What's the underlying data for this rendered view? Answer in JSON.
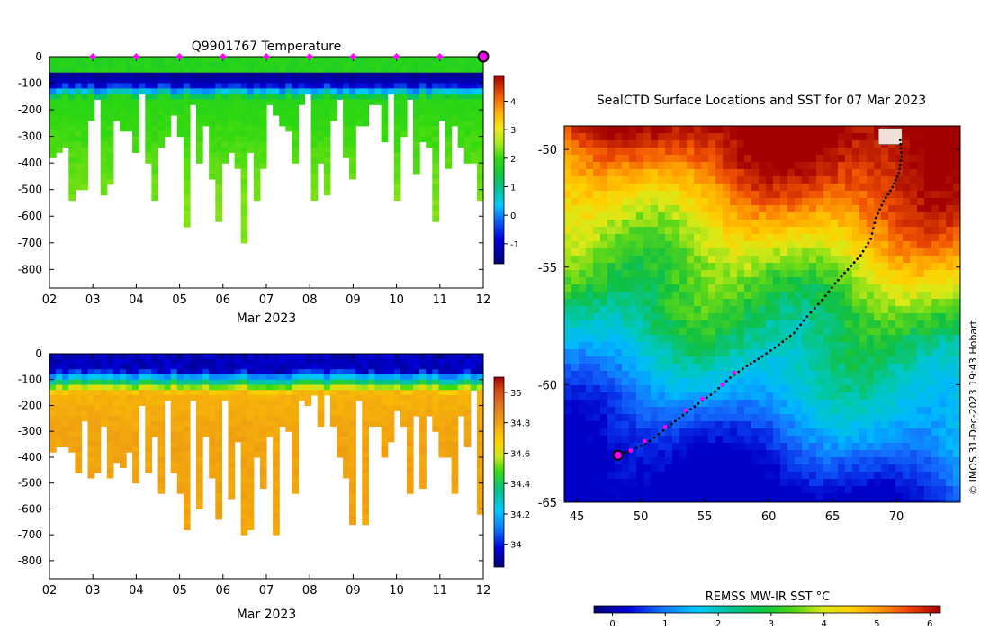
{
  "chart_data": [
    {
      "id": "temperature",
      "type": "heatmap",
      "title": "Q9901767  Temperature",
      "xlabel": "Mar 2023",
      "x_tick_labels": [
        "02",
        "03",
        "04",
        "05",
        "06",
        "07",
        "08",
        "09",
        "10",
        "11",
        "12"
      ],
      "x_ticks": [
        2,
        3,
        4,
        5,
        6,
        7,
        8,
        9,
        10,
        11,
        12
      ],
      "xlim": [
        2,
        12
      ],
      "ylim": [
        -870,
        0
      ],
      "y_ticks": [
        0,
        -100,
        -200,
        -300,
        -400,
        -500,
        -600,
        -700,
        -800
      ],
      "y_tick_labels": [
        "0",
        "-100",
        "-200",
        "-300",
        "-400",
        "-500",
        "-600",
        "-700",
        "-800"
      ],
      "colorbar": {
        "range": [
          -1.7,
          4.9
        ],
        "ticks": [
          -1,
          0,
          1,
          2,
          3,
          4
        ],
        "tick_labels": [
          "-1",
          "0",
          "1",
          "2",
          "3",
          "4"
        ]
      },
      "surface_markers_day": [
        3,
        4,
        5,
        6,
        7,
        8,
        9,
        10,
        11
      ],
      "current_position_day": 12
    },
    {
      "id": "salinity",
      "type": "heatmap",
      "title": "",
      "xlabel": "Mar 2023",
      "x_tick_labels": [
        "02",
        "03",
        "04",
        "05",
        "06",
        "07",
        "08",
        "09",
        "10",
        "11",
        "12"
      ],
      "x_ticks": [
        2,
        3,
        4,
        5,
        6,
        7,
        8,
        9,
        10,
        11,
        12
      ],
      "xlim": [
        2,
        12
      ],
      "ylim": [
        -870,
        0
      ],
      "y_ticks": [
        0,
        -100,
        -200,
        -300,
        -400,
        -500,
        -600,
        -700,
        -800
      ],
      "y_tick_labels": [
        "0",
        "-100",
        "-200",
        "-300",
        "-400",
        "-500",
        "-600",
        "-700",
        "-800"
      ],
      "colorbar": {
        "range": [
          33.85,
          35.1
        ],
        "ticks": [
          34,
          34.2,
          34.4,
          34.6,
          34.8,
          35
        ],
        "tick_labels": [
          "34",
          "34.2",
          "34.4",
          "34.6",
          "34.8",
          "35"
        ]
      }
    },
    {
      "id": "sst_map",
      "type": "heatmap",
      "title": "SealCTD Surface Locations and SST for 07 Mar 2023",
      "xlim": [
        44,
        75
      ],
      "ylim": [
        -65,
        -49
      ],
      "x_ticks": [
        45,
        50,
        55,
        60,
        65,
        70
      ],
      "x_tick_labels": [
        "45",
        "50",
        "55",
        "60",
        "65",
        "70"
      ],
      "y_ticks": [
        -50,
        -55,
        -60,
        -65
      ],
      "y_tick_labels": [
        "-50",
        "-55",
        "-60",
        "-65"
      ],
      "colorbar": {
        "label": "REMSS MW-IR SST °C",
        "range": [
          -0.35,
          6.2
        ],
        "ticks": [
          0,
          1,
          2,
          3,
          4,
          5,
          6
        ],
        "tick_labels": [
          "0",
          "1",
          "2",
          "3",
          "4",
          "5",
          "6"
        ]
      },
      "track": [
        [
          70.3,
          -49.6
        ],
        [
          70.4,
          -50.3
        ],
        [
          70.2,
          -51.0
        ],
        [
          69.7,
          -51.6
        ],
        [
          69.0,
          -52.2
        ],
        [
          68.4,
          -52.9
        ],
        [
          68.0,
          -53.8
        ],
        [
          67.2,
          -54.5
        ],
        [
          66.2,
          -55.1
        ],
        [
          65.2,
          -55.7
        ],
        [
          64.2,
          -56.4
        ],
        [
          63.0,
          -57.1
        ],
        [
          62.0,
          -57.8
        ],
        [
          60.8,
          -58.3
        ],
        [
          59.5,
          -58.8
        ],
        [
          58.3,
          -59.2
        ],
        [
          57.0,
          -59.7
        ],
        [
          55.8,
          -60.3
        ],
        [
          54.5,
          -60.8
        ],
        [
          53.3,
          -61.3
        ],
        [
          52.1,
          -61.8
        ],
        [
          50.7,
          -62.4
        ],
        [
          49.3,
          -62.8
        ],
        [
          48.2,
          -63.0
        ]
      ],
      "track_daily_points": [
        [
          57.3,
          -59.5
        ],
        [
          56.4,
          -60.0
        ],
        [
          54.8,
          -60.6
        ],
        [
          53.5,
          -61.1
        ],
        [
          51.9,
          -61.8
        ],
        [
          50.3,
          -62.4
        ],
        [
          49.2,
          -62.8
        ]
      ],
      "start_position": [
        48.2,
        -63.0
      ]
    }
  ],
  "credit": "© IMOS 31-Dec-2023 19:43 Hobart"
}
